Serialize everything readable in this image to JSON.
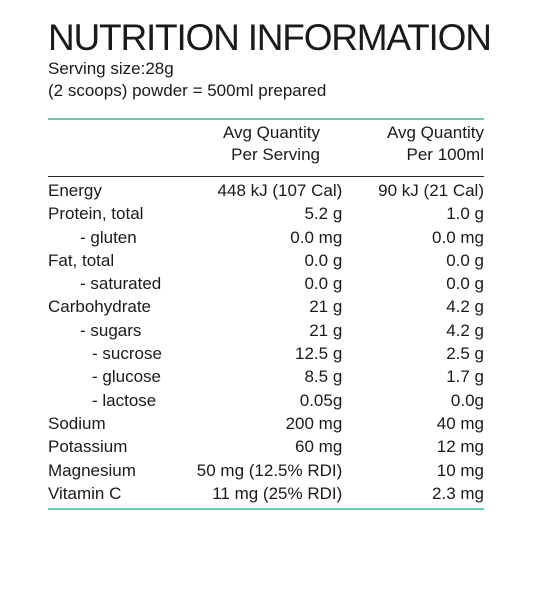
{
  "panel": {
    "title": "NUTRITION INFORMATION",
    "serving_size": "Serving size:28g",
    "serving_note": "(2 scoops) powder = 500ml prepared",
    "accent_color": "#6cc8b0"
  },
  "columns": {
    "per_serving_line1": "Avg Quantity",
    "per_serving_line2": "Per Serving",
    "per_100ml_line1": "Avg Quantity",
    "per_100ml_line2": "Per 100ml"
  },
  "rows": [
    {
      "name": "Energy",
      "per_serving": "448 kJ (107 Cal)",
      "per_100ml": "90 kJ (21 Cal)"
    },
    {
      "name": "Protein, total",
      "per_serving": "5.2 g",
      "per_100ml": "1.0 g"
    },
    {
      "name": "- gluten",
      "per_serving": "0.0 mg",
      "per_100ml": "0.0 mg"
    },
    {
      "name": "Fat, total",
      "per_serving": "0.0 g",
      "per_100ml": "0.0 g"
    },
    {
      "name": "- saturated",
      "per_serving": "0.0 g",
      "per_100ml": "0.0 g"
    },
    {
      "name": "Carbohydrate",
      "per_serving": "21 g",
      "per_100ml": "4.2 g"
    },
    {
      "name": "- sugars",
      "per_serving": "21 g",
      "per_100ml": "4.2 g"
    },
    {
      "name": "- sucrose",
      "per_serving": "12.5 g",
      "per_100ml": "2.5 g"
    },
    {
      "name": "- glucose",
      "per_serving": "8.5 g",
      "per_100ml": "1.7 g"
    },
    {
      "name": "- lactose",
      "per_serving": "0.05g",
      "per_100ml": "0.0g"
    },
    {
      "name": "Sodium",
      "per_serving": "200 mg",
      "per_100ml": "40 mg"
    },
    {
      "name": "Potassium",
      "per_serving": "60 mg",
      "per_100ml": "12 mg"
    },
    {
      "name": "Magnesium",
      "per_serving": "50 mg (12.5% RDI)",
      "per_100ml": "10 mg"
    },
    {
      "name": "Vitamin C",
      "per_serving": "11 mg (25% RDI)",
      "per_100ml": "2.3 mg"
    }
  ]
}
